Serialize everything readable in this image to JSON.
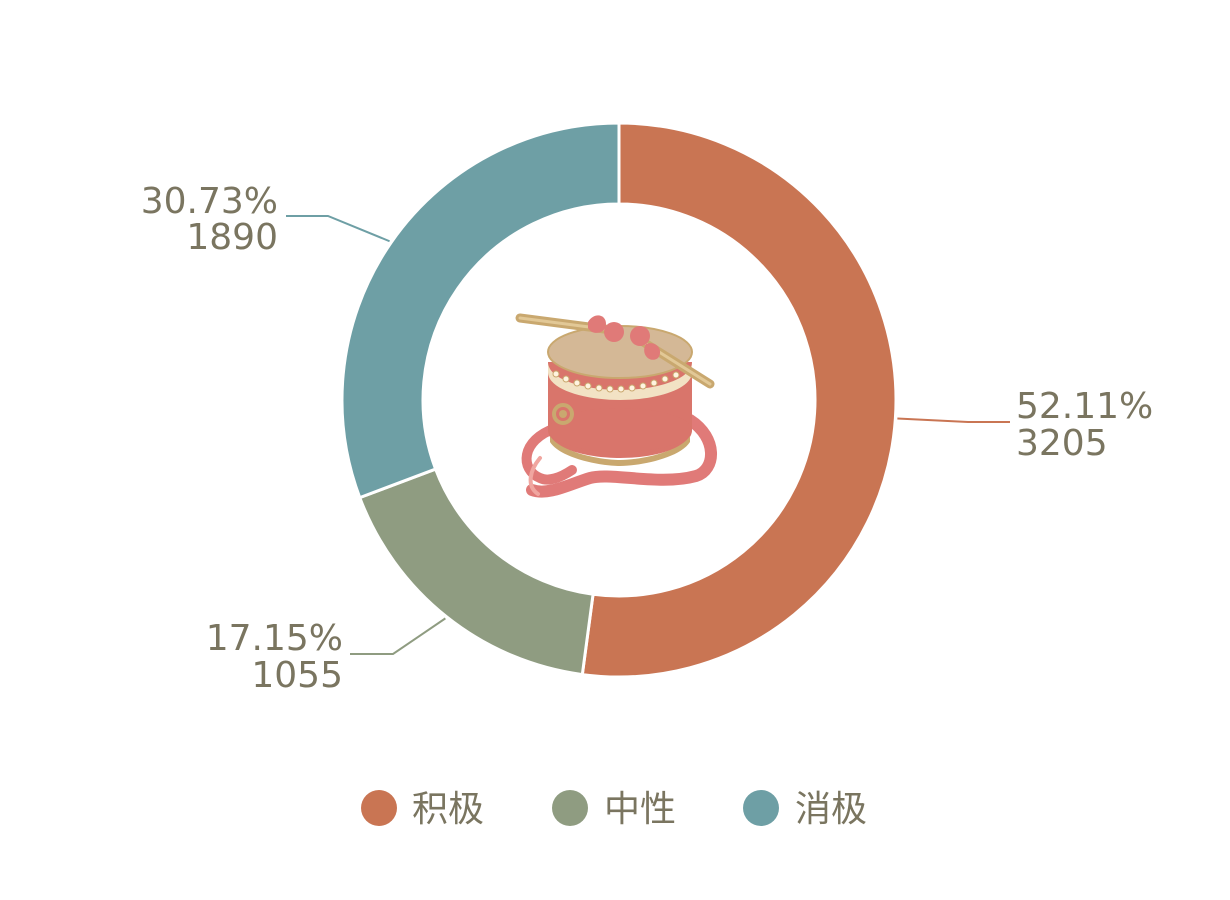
{
  "chart_data": {
    "type": "pie",
    "variant": "donut",
    "title": "",
    "legend_position": "bottom",
    "slices": [
      {
        "name": "积极",
        "value": 3205,
        "percent": "52.11%",
        "color": "#c97553"
      },
      {
        "name": "中性",
        "value": 1055,
        "percent": "17.15%",
        "color": "#8f9c81"
      },
      {
        "name": "消极",
        "value": 1890,
        "percent": "30.73%",
        "color": "#6e9fa5"
      }
    ],
    "center_icon": "drum-icon"
  }
}
